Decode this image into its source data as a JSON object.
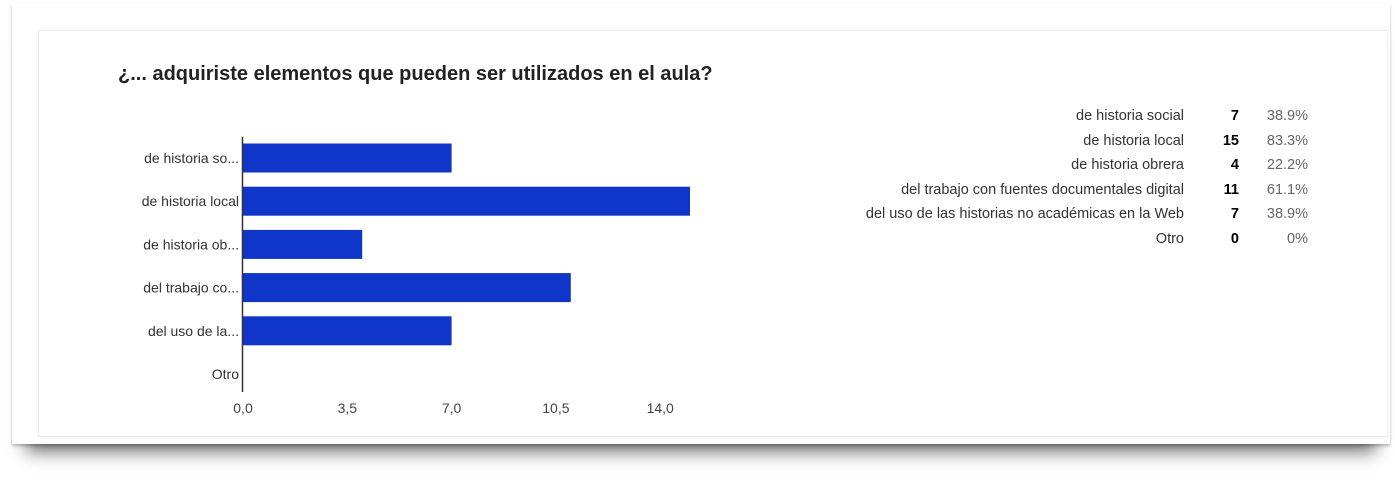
{
  "title": "¿... adquiriste elementos que pueden ser utilizados en el aula?",
  "colors": {
    "bar": "#1035c9",
    "axis": "#333333"
  },
  "chart_data": {
    "type": "bar",
    "orientation": "horizontal",
    "title": "¿... adquiriste elementos que pueden ser utilizados en el aula?",
    "categories": [
      "de historia so...",
      "de historia local",
      "de historia ob...",
      "del trabajo co...",
      "del uso de la...",
      "Otro"
    ],
    "values": [
      7,
      15,
      4,
      11,
      7,
      0
    ],
    "xlim": [
      0,
      15
    ],
    "xticks": [
      "0,0",
      "3,5",
      "7,0",
      "10,5",
      "14,0"
    ],
    "xtick_values": [
      0,
      3.5,
      7,
      10.5,
      14
    ],
    "grid": false,
    "legend": "none"
  },
  "summary": [
    {
      "label": "de historia social",
      "count": "7",
      "percent": "38.9%"
    },
    {
      "label": "de historia local",
      "count": "15",
      "percent": "83.3%"
    },
    {
      "label": "de historia obrera",
      "count": "4",
      "percent": "22.2%"
    },
    {
      "label": "del trabajo con fuentes documentales digital",
      "count": "11",
      "percent": "61.1%"
    },
    {
      "label": "del uso de las historias no académicas en la Web",
      "count": "7",
      "percent": "38.9%"
    },
    {
      "label": "Otro",
      "count": "0",
      "percent": "0%"
    }
  ]
}
